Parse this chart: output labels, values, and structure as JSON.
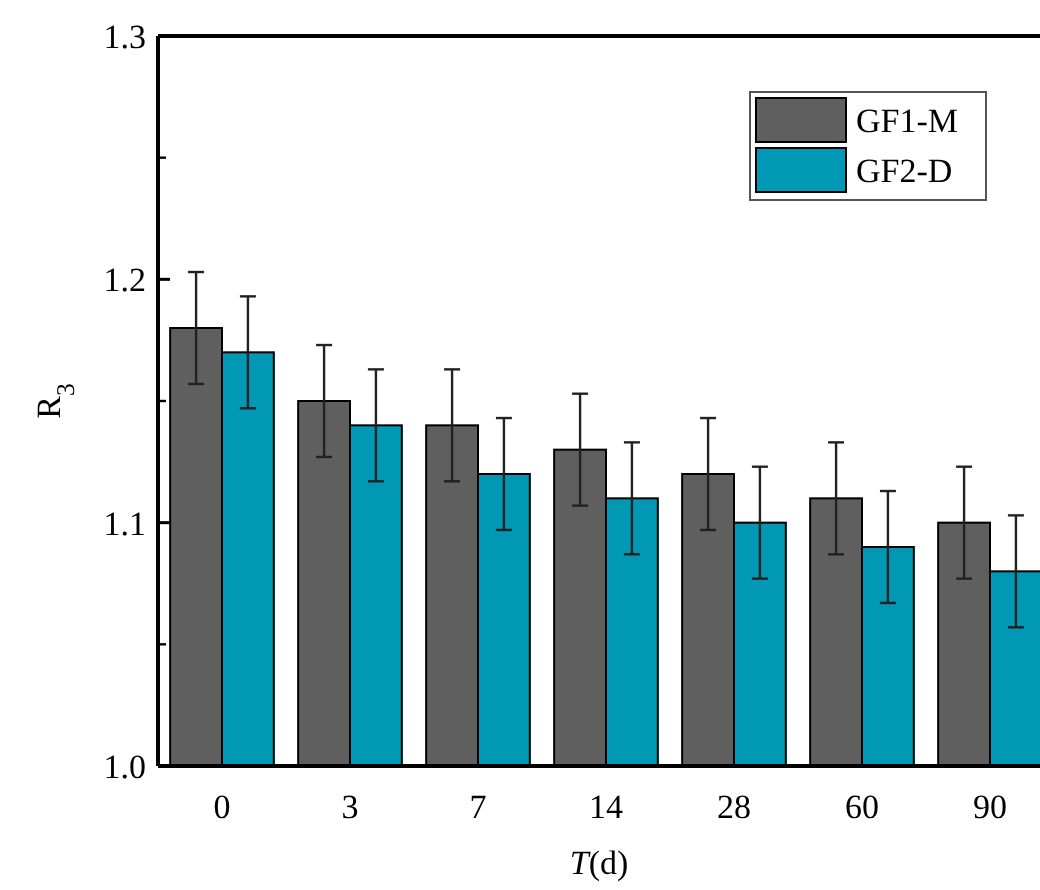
{
  "chart_data": {
    "type": "bar",
    "xlabel": "T(d)",
    "ylabel": "R$_{3}$",
    "categories": [
      "0",
      "3",
      "7",
      "14",
      "28",
      "60",
      "90"
    ],
    "series": [
      {
        "name": "GF1-M",
        "color": "#5f5f5f",
        "values": [
          1.18,
          1.15,
          1.14,
          1.13,
          1.12,
          1.11,
          1.1
        ],
        "errors": [
          0.023,
          0.023,
          0.023,
          0.023,
          0.023,
          0.023,
          0.023
        ]
      },
      {
        "name": "GF2-D",
        "color": "#0098b4",
        "values": [
          1.17,
          1.14,
          1.12,
          1.11,
          1.1,
          1.09,
          1.08
        ],
        "errors": [
          0.023,
          0.023,
          0.023,
          0.023,
          0.023,
          0.023,
          0.023
        ]
      }
    ],
    "ylim": [
      1.0,
      1.3
    ],
    "yticks": [
      {
        "value": 1,
        "label": "1.0"
      },
      1.1,
      1.2,
      1.3
    ],
    "legend": "top right",
    "grid": false
  }
}
